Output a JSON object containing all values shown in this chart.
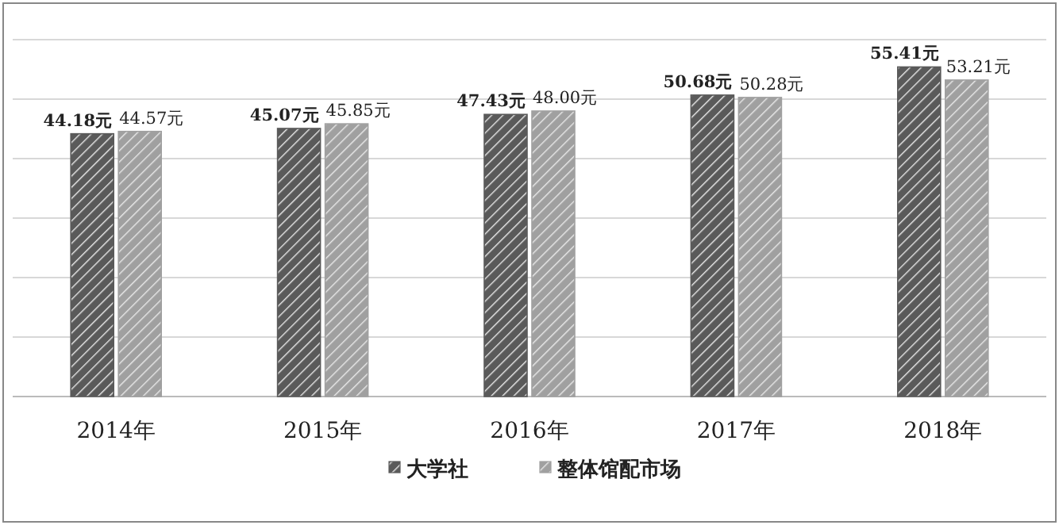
{
  "chart_data": {
    "type": "bar",
    "categories": [
      "2014年",
      "2015年",
      "2016年",
      "2017年",
      "2018年"
    ],
    "series": [
      {
        "name": "大学社",
        "color": "#5a5a5a",
        "values": [
          44.18,
          45.07,
          47.43,
          50.68,
          55.41
        ],
        "value_labels": [
          "44.18元",
          "45.07元",
          "47.43元",
          "50.68元",
          "55.41元"
        ]
      },
      {
        "name": "整体馆配市场",
        "color": "#a0a0a0",
        "values": [
          44.57,
          45.85,
          48.0,
          50.28,
          53.21
        ],
        "value_labels": [
          "44.57元",
          "45.85元",
          "48.00元",
          "50.28元",
          "53.21元"
        ]
      }
    ],
    "ylim": [
      0,
      60
    ],
    "yticks": [
      {
        "value": 0,
        "label": null
      },
      {
        "value": 10,
        "label": null
      },
      {
        "value": 20,
        "label": null
      },
      {
        "value": 30,
        "label": null
      },
      {
        "value": 40,
        "label": null
      },
      {
        "value": 50,
        "label": null
      },
      {
        "value": 60,
        "label": null
      }
    ],
    "tick_labels": "x",
    "grid": "y",
    "legend": "bottom"
  }
}
